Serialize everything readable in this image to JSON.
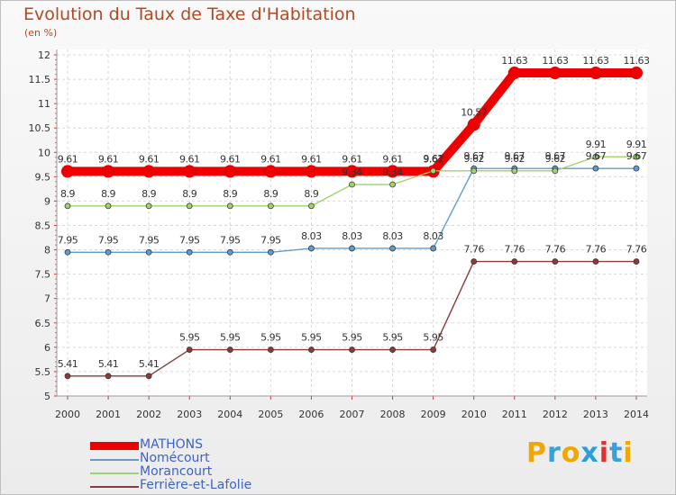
{
  "title": "Evolution du Taux de Taxe d'Habitation",
  "unit": "(en %)",
  "brand": {
    "letters": [
      "P",
      "r",
      "o",
      "x",
      "i",
      "t",
      "i"
    ],
    "colors": [
      "#f0a800",
      "#3aa0d8",
      "#f0a800",
      "#2aa0d8",
      "#e03030",
      "#3aa0d8",
      "#f0a800"
    ]
  },
  "chart_data": {
    "type": "line",
    "title": "Evolution du Taux de Taxe d'Habitation",
    "ylabel": "(en %)",
    "xlabel": "",
    "ylim": [
      5,
      12
    ],
    "yticks": [
      "5",
      "5.5",
      "6",
      "6.5",
      "7",
      "7.5",
      "8",
      "8.5",
      "9",
      "9.5",
      "10",
      "10.5",
      "11",
      "11.5",
      "12"
    ],
    "categories": [
      "2000",
      "2001",
      "2002",
      "2003",
      "2004",
      "2005",
      "2006",
      "2007",
      "2008",
      "2009",
      "2010",
      "2011",
      "2012",
      "2013",
      "2014"
    ],
    "grid": true,
    "legend": "bottom-left",
    "series": [
      {
        "name": "MATHONS",
        "color": "#ee0000",
        "thick": true,
        "values": [
          9.61,
          9.61,
          9.61,
          9.61,
          9.61,
          9.61,
          9.61,
          9.61,
          9.61,
          9.61,
          10.57,
          11.63,
          11.63,
          11.63,
          11.63
        ],
        "labels": [
          "9.61",
          "9.61",
          "9.61",
          "9.61",
          "9.61",
          "9.61",
          "9.61",
          "9.61",
          "9.61",
          "9.61",
          "10.57",
          "11.63",
          "11.63",
          "11.63",
          "11.63"
        ]
      },
      {
        "name": "Nomécourt",
        "color": "#5f9dd0",
        "thick": false,
        "values": [
          7.95,
          7.95,
          7.95,
          7.95,
          7.95,
          7.95,
          8.03,
          8.03,
          8.03,
          8.03,
          9.67,
          9.67,
          9.67,
          9.67,
          9.67
        ],
        "labels": [
          "7.95",
          "7.95",
          "7.95",
          "7.95",
          "7.95",
          "7.95",
          "8.03",
          "8.03",
          "8.03",
          "8.03",
          "9.67",
          "9.67",
          "9.67",
          "9.67",
          "9.67"
        ]
      },
      {
        "name": "Morancourt",
        "color": "#9ed46a",
        "thick": false,
        "values": [
          8.9,
          8.9,
          8.9,
          8.9,
          8.9,
          8.9,
          8.9,
          9.34,
          9.34,
          9.62,
          9.62,
          9.62,
          9.62,
          9.91,
          9.91
        ],
        "labels": [
          "8.9",
          "8.9",
          "8.9",
          "8.9",
          "8.9",
          "8.9",
          "8.9",
          "9.34",
          "9.34",
          "9.62",
          "9.62",
          "9.62",
          "9.62",
          "9.91",
          "9.91"
        ]
      },
      {
        "name": "Ferrière-et-Lafolie",
        "color": "#8a3a3a",
        "thick": false,
        "values": [
          5.41,
          5.41,
          5.41,
          5.95,
          5.95,
          5.95,
          5.95,
          5.95,
          5.95,
          5.95,
          7.76,
          7.76,
          7.76,
          7.76,
          7.76
        ],
        "labels": [
          "5.41",
          "5.41",
          "5.41",
          "5.95",
          "5.95",
          "5.95",
          "5.95",
          "5.95",
          "5.95",
          "5.95",
          "7.76",
          "7.76",
          "7.76",
          "7.76",
          "7.76"
        ]
      }
    ]
  }
}
